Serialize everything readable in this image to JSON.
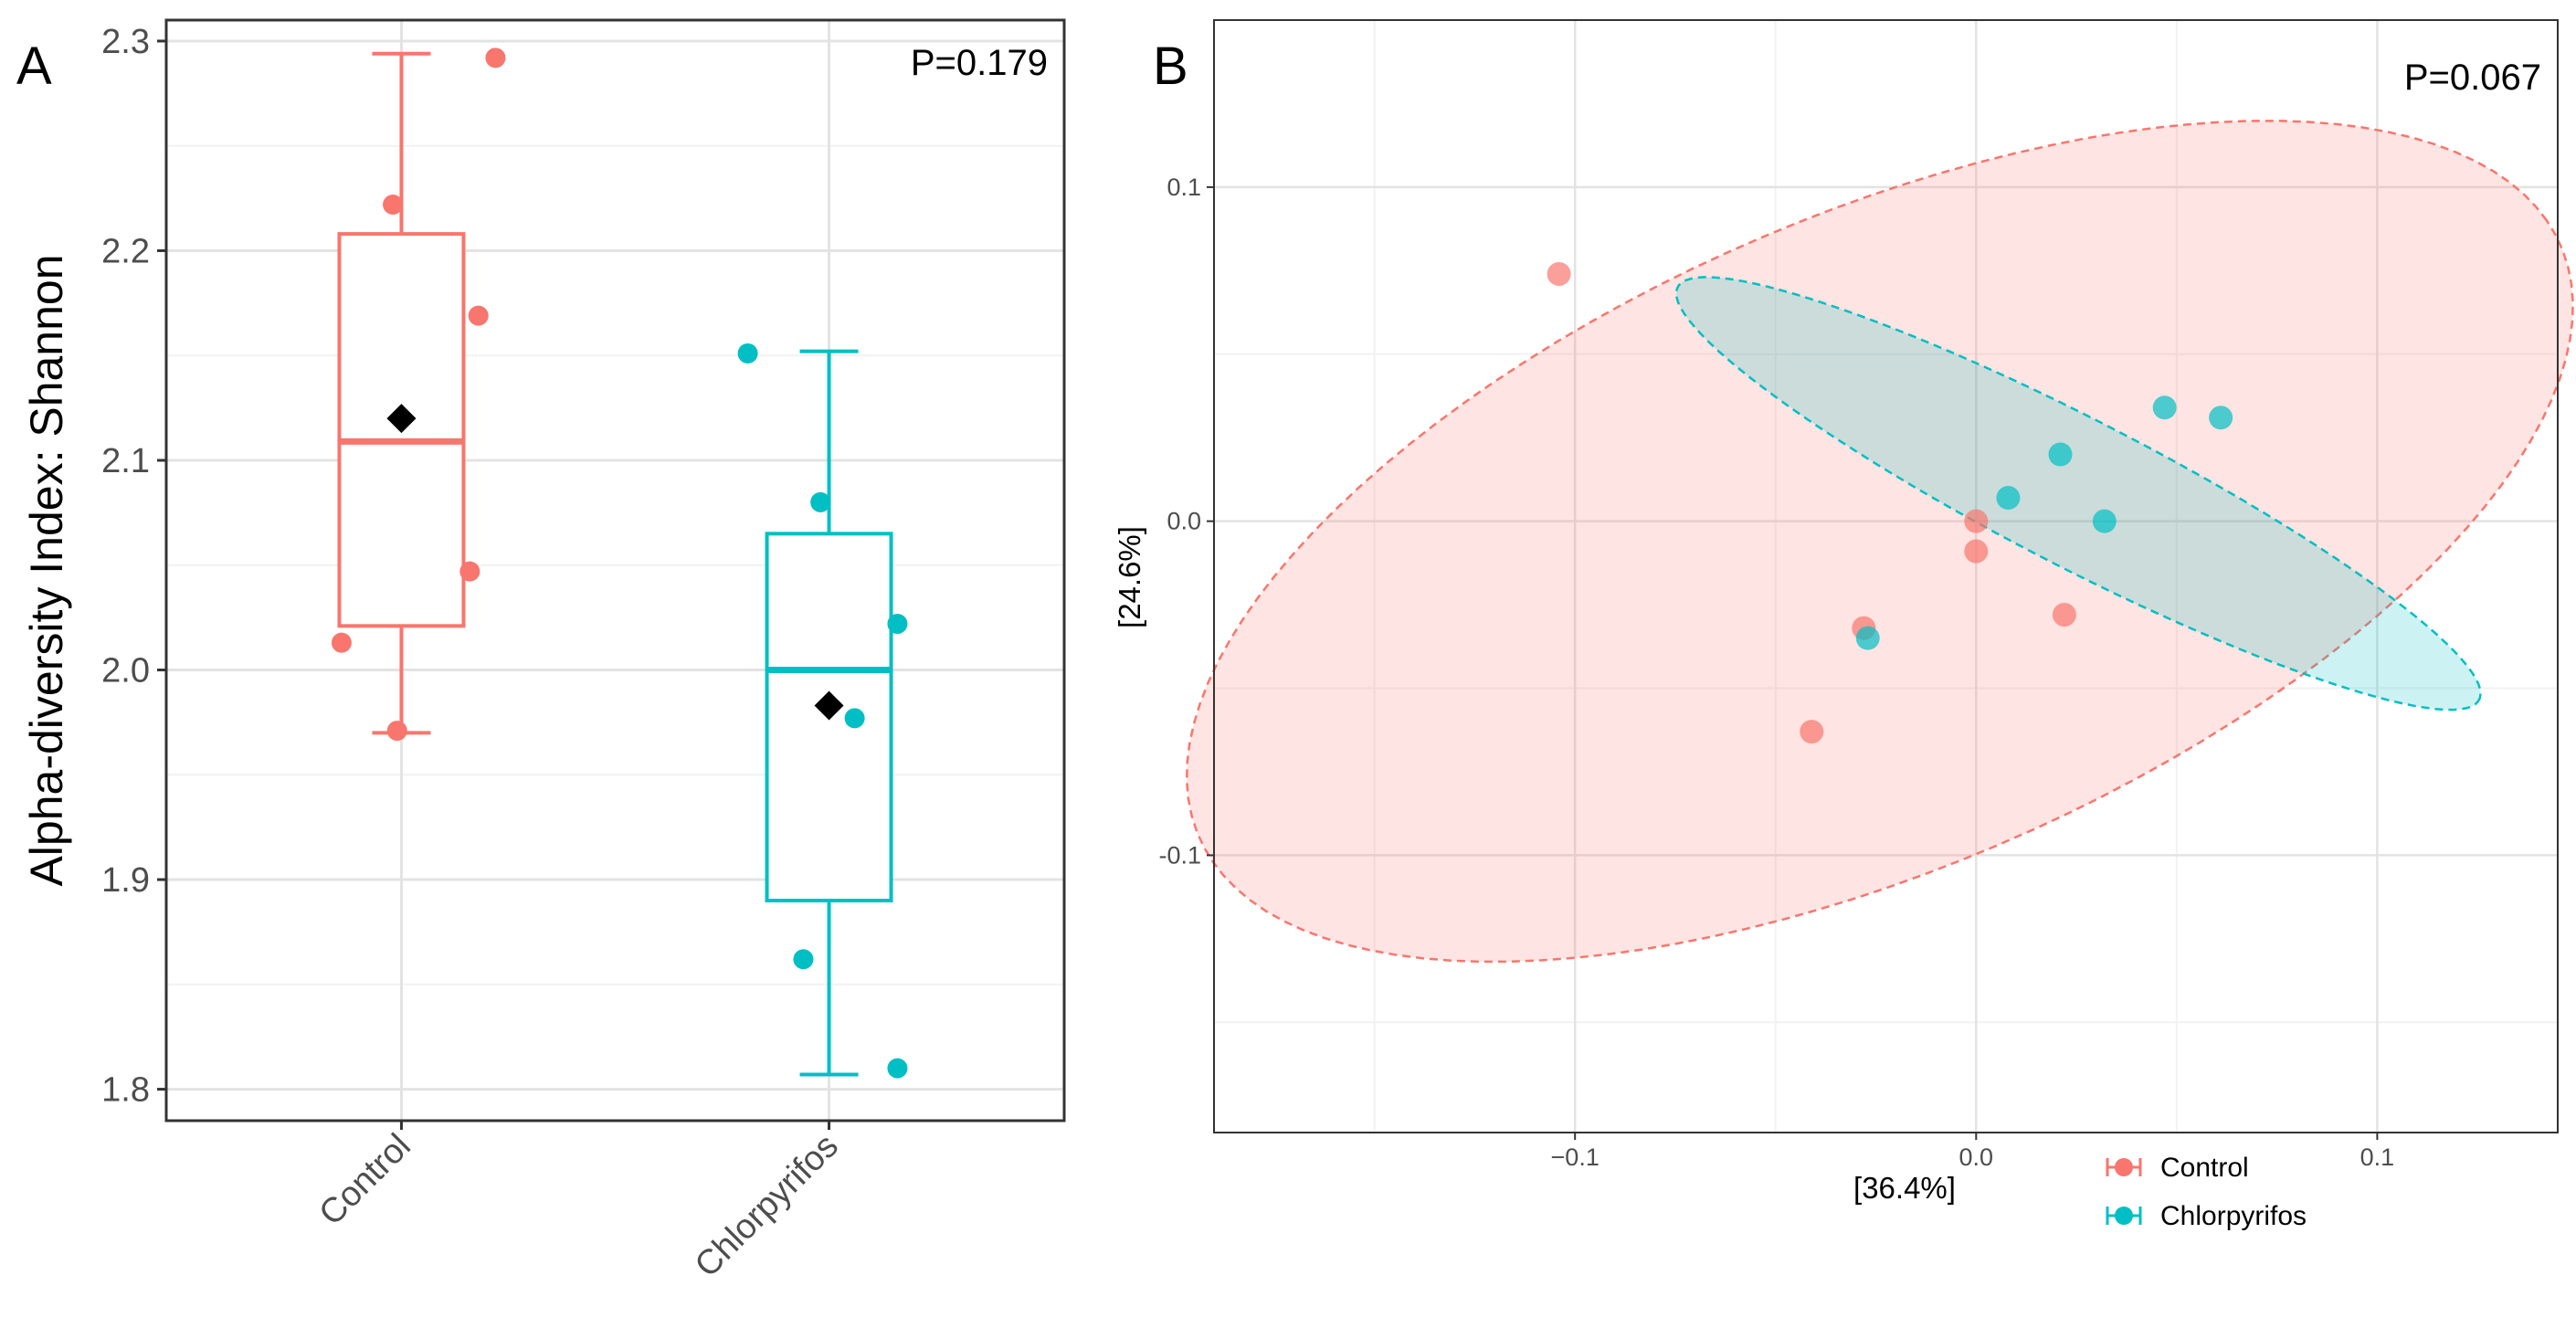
{
  "colors": {
    "control": "#F8766D",
    "chlorpyrifos": "#00BFC4",
    "mean": "#000000",
    "grid_major": "#e3e3e3",
    "grid_minor": "#f2f2f2",
    "frame": "#333333"
  },
  "panels": {
    "a_label": "A",
    "b_label": "B"
  },
  "chart_data": [
    {
      "type": "box",
      "panel": "A",
      "annotation": "P=0.179",
      "title": "",
      "xlabel": "",
      "ylabel": "Alpha-diversity Index: Shannon",
      "ylim": [
        1.785,
        2.31
      ],
      "yticks": [
        1.8,
        1.9,
        2.0,
        2.1,
        2.2,
        2.3
      ],
      "ytick_labels": [
        "1.8",
        "1.9",
        "2.0",
        "2.1",
        "2.2",
        "2.3"
      ],
      "categories": [
        "Control",
        "Chlorpyrifos"
      ],
      "series": [
        {
          "name": "Control",
          "color": "#F8766D",
          "min": 1.97,
          "q1": 2.021,
          "median": 2.109,
          "q3": 2.208,
          "max": 2.294,
          "mean": 2.12,
          "points": [
            {
              "x": 1.22,
              "y": 2.292
            },
            {
              "x": 0.98,
              "y": 2.222
            },
            {
              "x": 1.18,
              "y": 2.169
            },
            {
              "x": 1.16,
              "y": 2.047
            },
            {
              "x": 0.86,
              "y": 2.013
            },
            {
              "x": 0.99,
              "y": 1.971
            }
          ]
        },
        {
          "name": "Chlorpyrifos",
          "color": "#00BFC4",
          "min": 1.807,
          "q1": 1.89,
          "median": 2.0,
          "q3": 2.065,
          "max": 2.152,
          "mean": 1.983,
          "points": [
            {
              "x": 1.81,
              "y": 2.151
            },
            {
              "x": 1.98,
              "y": 2.08
            },
            {
              "x": 2.16,
              "y": 2.022
            },
            {
              "x": 2.06,
              "y": 1.977
            },
            {
              "x": 1.94,
              "y": 1.862
            },
            {
              "x": 2.16,
              "y": 1.81
            }
          ]
        }
      ]
    },
    {
      "type": "scatter",
      "panel": "B",
      "annotation": "P=0.067",
      "title": "",
      "xlabel": "[36.4%]",
      "ylabel": "[24.6%]",
      "xlim": [
        -0.19,
        0.145
      ],
      "ylim": [
        -0.183,
        0.15
      ],
      "xticks": [
        -0.1,
        0.0,
        0.1
      ],
      "xtick_labels": [
        "−0.1",
        "0.0",
        "0.1"
      ],
      "yticks": [
        -0.1,
        0.0,
        0.1
      ],
      "ytick_labels": [
        "-0.1",
        "0.0",
        "0.1"
      ],
      "legend_position": "bottom-right",
      "series": [
        {
          "name": "Control",
          "color": "#F8766D",
          "points": [
            {
              "x": -0.104,
              "y": 0.074
            },
            {
              "x": 0.0,
              "y": 0.0
            },
            {
              "x": 0.0,
              "y": -0.009
            },
            {
              "x": 0.022,
              "y": -0.028
            },
            {
              "x": -0.028,
              "y": -0.032
            },
            {
              "x": -0.041,
              "y": -0.063
            }
          ],
          "ellipse": {
            "cx": -0.024,
            "cy": -0.006,
            "rx": 0.192,
            "ry": 0.094,
            "angle": 30
          }
        },
        {
          "name": "Chlorpyrifos",
          "color": "#00BFC4",
          "points": [
            {
              "x": 0.047,
              "y": 0.034
            },
            {
              "x": 0.061,
              "y": 0.031
            },
            {
              "x": 0.021,
              "y": 0.02
            },
            {
              "x": 0.008,
              "y": 0.007
            },
            {
              "x": 0.032,
              "y": 0.0
            },
            {
              "x": -0.027,
              "y": -0.035
            }
          ],
          "ellipse": {
            "cx": 0.0255,
            "cy": 0.0083,
            "rx": 0.1175,
            "ry": 0.021,
            "angle": -32
          }
        }
      ]
    }
  ]
}
